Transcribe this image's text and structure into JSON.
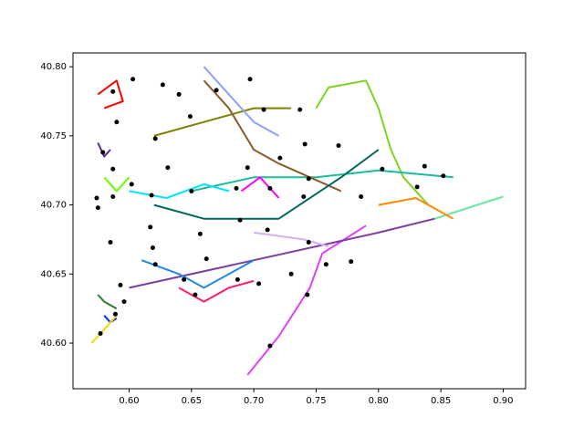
{
  "chart_data": {
    "type": "scatter",
    "xlim": [
      0.555,
      0.918
    ],
    "ylim": [
      40.567,
      40.81
    ],
    "xticks": [
      {
        "value": 0.6,
        "label": "0.60"
      },
      {
        "value": 0.65,
        "label": "0.65"
      },
      {
        "value": 0.7,
        "label": "0.70"
      },
      {
        "value": 0.75,
        "label": "0.75"
      },
      {
        "value": 0.8,
        "label": "0.80"
      },
      {
        "value": 0.85,
        "label": "0.85"
      },
      {
        "value": 0.9,
        "label": "0.90"
      }
    ],
    "yticks": [
      {
        "value": 40.6,
        "label": "40.60"
      },
      {
        "value": 40.65,
        "label": "40.65"
      },
      {
        "value": 40.7,
        "label": "40.70"
      },
      {
        "value": 40.75,
        "label": "40.75"
      },
      {
        "value": 40.8,
        "label": "40.80"
      }
    ],
    "grid": false,
    "series": [
      {
        "mode": "line",
        "color": "#e040fb",
        "x": [
          0.695,
          0.72,
          0.745,
          0.755,
          0.79
        ],
        "y": [
          40.577,
          40.605,
          40.64,
          40.665,
          40.685
        ]
      },
      {
        "mode": "line",
        "color": "#7b3fa0",
        "x": [
          0.6,
          0.7,
          0.8,
          0.845
        ],
        "y": [
          40.64,
          40.66,
          40.68,
          40.69
        ]
      },
      {
        "mode": "line",
        "color": "#66e8a0",
        "x": [
          0.845,
          0.9
        ],
        "y": [
          40.69,
          40.706
        ]
      },
      {
        "mode": "line",
        "color": "#7ed321",
        "x": [
          0.75,
          0.76,
          0.79,
          0.8,
          0.81,
          0.82,
          0.84
        ],
        "y": [
          40.77,
          40.785,
          40.79,
          40.77,
          40.74,
          40.72,
          40.7
        ]
      },
      {
        "mode": "line",
        "color": "#1abc9c",
        "x": [
          0.65,
          0.7,
          0.75,
          0.8,
          0.86
        ],
        "y": [
          40.71,
          40.72,
          40.72,
          40.725,
          40.72
        ]
      },
      {
        "mode": "line",
        "color": "#ff8c00",
        "x": [
          0.8,
          0.83,
          0.86
        ],
        "y": [
          40.7,
          40.705,
          40.69
        ]
      },
      {
        "mode": "line",
        "color": "#ff0000",
        "x": [
          0.575,
          0.59,
          0.595,
          0.58
        ],
        "y": [
          40.78,
          40.79,
          40.775,
          40.77
        ]
      },
      {
        "mode": "line",
        "color": "#808000",
        "x": [
          0.62,
          0.66,
          0.7,
          0.73
        ],
        "y": [
          40.75,
          40.76,
          40.77,
          40.77
        ]
      },
      {
        "mode": "line",
        "color": "#00e5ff",
        "x": [
          0.6,
          0.63,
          0.66,
          0.68
        ],
        "y": [
          40.71,
          40.705,
          40.715,
          40.71
        ]
      },
      {
        "mode": "line",
        "color": "#2e7d32",
        "x": [
          0.575,
          0.58,
          0.59
        ],
        "y": [
          40.635,
          40.63,
          40.625
        ]
      },
      {
        "mode": "line",
        "color": "#0033ff",
        "x": [
          0.58,
          0.585,
          0.59
        ],
        "y": [
          40.62,
          40.615,
          40.618
        ]
      },
      {
        "mode": "line",
        "color": "#ffd700",
        "x": [
          0.57,
          0.58,
          0.59
        ],
        "y": [
          40.6,
          40.61,
          40.62
        ]
      },
      {
        "mode": "line",
        "color": "#8b5a2b",
        "x": [
          0.66,
          0.68,
          0.7,
          0.72,
          0.77
        ],
        "y": [
          40.79,
          40.77,
          40.74,
          40.73,
          40.71
        ]
      },
      {
        "mode": "line",
        "color": "#00695c",
        "x": [
          0.62,
          0.66,
          0.72,
          0.77,
          0.8
        ],
        "y": [
          40.7,
          40.69,
          40.69,
          40.72,
          40.74
        ]
      },
      {
        "mode": "line",
        "color": "#1e88e5",
        "x": [
          0.61,
          0.64,
          0.66,
          0.7
        ],
        "y": [
          40.66,
          40.65,
          40.64,
          40.66
        ]
      },
      {
        "mode": "line",
        "color": "#ff1a75",
        "x": [
          0.64,
          0.66,
          0.68,
          0.7
        ],
        "y": [
          40.64,
          40.63,
          40.64,
          40.645
        ]
      },
      {
        "mode": "line",
        "color": "#8da0ff",
        "x": [
          0.66,
          0.68,
          0.7,
          0.72
        ],
        "y": [
          40.8,
          40.78,
          40.76,
          40.75
        ]
      },
      {
        "mode": "line",
        "color": "#ff00ff",
        "x": [
          0.69,
          0.705,
          0.72
        ],
        "y": [
          40.71,
          40.72,
          40.705
        ]
      },
      {
        "mode": "line",
        "color": "#5b2c9f",
        "x": [
          0.575,
          0.58,
          0.585
        ],
        "y": [
          40.745,
          40.735,
          40.74
        ]
      },
      {
        "mode": "line",
        "color": "#66ff00",
        "x": [
          0.58,
          0.59,
          0.6
        ],
        "y": [
          40.72,
          40.71,
          40.72
        ]
      },
      {
        "mode": "line",
        "color": "#d7aef5",
        "x": [
          0.7,
          0.74,
          0.76
        ],
        "y": [
          40.68,
          40.675,
          40.67
        ]
      },
      {
        "mode": "marker",
        "color": "#000000",
        "x": [
          0.603,
          0.627,
          0.587,
          0.64,
          0.697,
          0.649,
          0.67,
          0.708,
          0.737,
          0.59,
          0.621,
          0.579,
          0.741,
          0.768,
          0.721,
          0.587,
          0.631,
          0.695,
          0.803,
          0.837,
          0.852,
          0.744,
          0.602,
          0.618,
          0.65,
          0.686,
          0.713,
          0.74,
          0.574,
          0.587,
          0.786,
          0.831,
          0.575,
          0.617,
          0.689,
          0.711,
          0.657,
          0.585,
          0.619,
          0.744,
          0.662,
          0.621,
          0.758,
          0.778,
          0.73,
          0.644,
          0.653,
          0.687,
          0.704,
          0.593,
          0.596,
          0.589,
          0.743,
          0.713,
          0.577
        ],
        "y": [
          40.791,
          40.787,
          40.782,
          40.78,
          40.791,
          40.764,
          40.783,
          40.769,
          40.769,
          40.76,
          40.748,
          40.738,
          40.744,
          40.743,
          40.734,
          40.726,
          40.727,
          40.727,
          40.726,
          40.728,
          40.721,
          40.719,
          40.715,
          40.707,
          40.71,
          40.712,
          40.712,
          40.706,
          40.705,
          40.706,
          40.706,
          40.713,
          40.698,
          40.684,
          40.689,
          40.682,
          40.679,
          40.673,
          40.669,
          40.673,
          40.661,
          40.657,
          40.657,
          40.659,
          40.65,
          40.646,
          40.635,
          40.646,
          40.643,
          40.642,
          40.63,
          40.621,
          40.635,
          40.598,
          40.607
        ]
      }
    ]
  }
}
